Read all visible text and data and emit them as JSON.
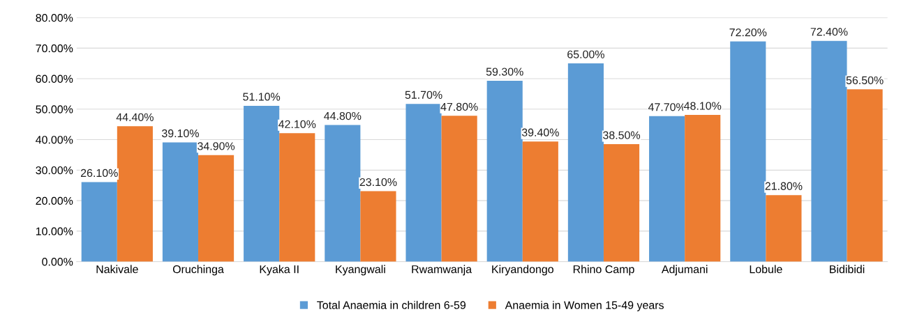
{
  "chart_data": {
    "type": "bar",
    "categories": [
      "Nakivale",
      "Oruchinga",
      "Kyaka II",
      "Kyangwali",
      "Rwamwanja",
      "Kiryandongo",
      "Rhino Camp",
      "Adjumani",
      "Lobule",
      "Bidibidi"
    ],
    "series": [
      {
        "name": "Total Anaemia in children 6-59",
        "color": "#5b9bd5",
        "values": [
          26.1,
          39.1,
          51.1,
          44.8,
          51.7,
          59.3,
          65.0,
          47.7,
          72.2,
          72.4
        ],
        "value_labels": [
          "26.10%",
          "39.10%",
          "51.10%",
          "44.80%",
          "51.70%",
          "59.30%",
          "65.00%",
          "47.70%",
          "72.20%",
          "72.40%"
        ]
      },
      {
        "name": "Anaemia in Women 15-49 years",
        "color": "#ed7d31",
        "values": [
          44.4,
          34.9,
          42.1,
          23.1,
          47.8,
          39.4,
          38.5,
          48.1,
          21.8,
          56.5
        ],
        "value_labels": [
          "44.40%",
          "34.90%",
          "42.10%",
          "23.10%",
          "47.80%",
          "39.40%",
          "38.50%",
          "48.10%",
          "21.80%",
          "56.50%"
        ]
      }
    ],
    "ylim": [
      0,
      80
    ],
    "yticks": [
      {
        "value": 0,
        "label": "0.00%"
      },
      {
        "value": 10,
        "label": "10.00%"
      },
      {
        "value": 20,
        "label": "20.00%"
      },
      {
        "value": 30,
        "label": "30.00%"
      },
      {
        "value": 40,
        "label": "40.00%"
      },
      {
        "value": 50,
        "label": "50.00%"
      },
      {
        "value": 60,
        "label": "60.00%"
      },
      {
        "value": 70,
        "label": "70.00%"
      },
      {
        "value": 80,
        "label": "80.00%"
      }
    ],
    "grid": "y",
    "legend": "bottom"
  }
}
